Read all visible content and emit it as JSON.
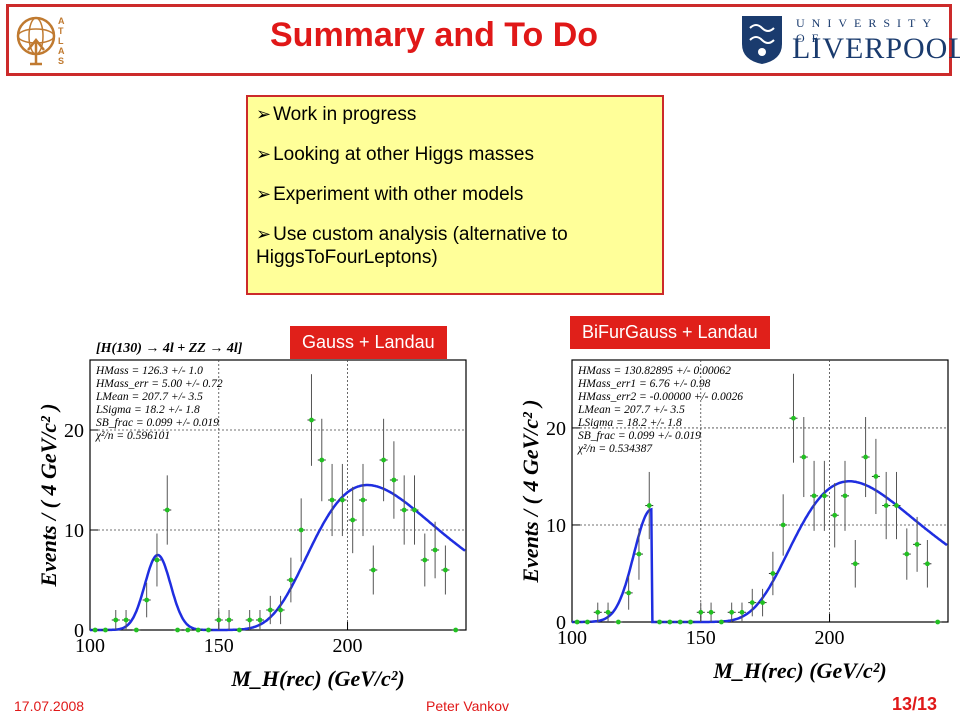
{
  "slide": {
    "title": "Summary and To Do",
    "footer_date": "17.07.2008",
    "footer_author": "Peter Vankov",
    "page": "13/13",
    "colors": {
      "accent": "#e01818",
      "box_bg": "#ffff99",
      "fit": "#1f2ee0",
      "points": "#22c022"
    }
  },
  "logos": {
    "atlas": {
      "text": "ATLAS"
    },
    "liverpool": {
      "top": "UNIVERSITY OF",
      "main": "LIVERPOOL"
    }
  },
  "todo": {
    "items": [
      "Work in progress",
      "Looking at other Higgs masses",
      "Experiment with other models",
      "Use custom analysis (alternative to HiggsToFourLeptons)"
    ]
  },
  "labels": {
    "left": "Gauss + Landau",
    "right": "BiFurGauss + Landau"
  },
  "chart_data": [
    {
      "type": "scatter",
      "title": "[H(130) → 4l + ZZ → 4l]",
      "xlabel": "M_H(rec) (GeV/c²)",
      "ylabel": "Events / ( 4 GeV/c² )",
      "xlim": [
        100,
        246
      ],
      "ylim": [
        0,
        27
      ],
      "xticks": [
        100,
        150,
        200
      ],
      "yticks": [
        0,
        10,
        20
      ],
      "stats": [
        "HMass = 126.3 +/- 1.0",
        "HMass_err = 5.00 +/- 0.72",
        "LMean = 207.7 +/- 3.5",
        "LSigma = 18.2 +/- 1.8",
        "SB_frac = 0.099 +/- 0.019",
        "χ²/n = 0.596101"
      ],
      "points": {
        "x": [
          102,
          106,
          110,
          114,
          118,
          122,
          126,
          130,
          134,
          138,
          142,
          146,
          150,
          154,
          158,
          162,
          166,
          170,
          174,
          178,
          182,
          186,
          190,
          194,
          198,
          202,
          206,
          210,
          214,
          218,
          222,
          226,
          230,
          234,
          238,
          242
        ],
        "y": [
          0,
          0,
          1,
          1,
          0,
          3,
          7,
          12,
          0,
          0,
          0,
          0,
          1,
          1,
          0,
          1,
          1,
          2,
          2,
          5,
          10,
          21,
          17,
          13,
          13,
          11,
          13,
          6,
          17,
          15,
          12,
          12,
          7,
          8,
          6,
          0
        ]
      },
      "curve": {
        "model": "gauss+landau",
        "peak_mass": 126.3,
        "peak_sigma": 5.0,
        "landau_mean": 207.7,
        "landau_sigma": 18.2
      }
    },
    {
      "type": "scatter",
      "title": "",
      "xlabel": "M_H(rec) (GeV/c²)",
      "ylabel": "Events / ( 4 GeV/c² )",
      "xlim": [
        100,
        246
      ],
      "ylim": [
        0,
        27
      ],
      "xticks": [
        100,
        150,
        200
      ],
      "yticks": [
        0,
        10,
        20
      ],
      "stats": [
        "HMass = 130.82895 +/- 0.00062",
        "HMass_err1 = 6.76 +/- 0.98",
        "HMass_err2 = -0.00000 +/- 0.0026",
        "LMean = 207.7 +/- 3.5",
        "LSigma = 18.2 +/- 1.8",
        "SB_frac = 0.099 +/- 0.019",
        "χ²/n = 0.534387"
      ],
      "points": {
        "x": [
          102,
          106,
          110,
          114,
          118,
          122,
          126,
          130,
          134,
          138,
          142,
          146,
          150,
          154,
          158,
          162,
          166,
          170,
          174,
          178,
          182,
          186,
          190,
          194,
          198,
          202,
          206,
          210,
          214,
          218,
          222,
          226,
          230,
          234,
          238,
          242
        ],
        "y": [
          0,
          0,
          1,
          1,
          0,
          3,
          7,
          12,
          0,
          0,
          0,
          0,
          1,
          1,
          0,
          1,
          1,
          2,
          2,
          5,
          10,
          21,
          17,
          13,
          13,
          11,
          13,
          6,
          17,
          15,
          12,
          12,
          7,
          8,
          6,
          0
        ]
      },
      "curve": {
        "model": "bifurgauss+landau",
        "peak_mass": 130.83,
        "sigma_left": 6.76,
        "sigma_right": 0.0,
        "landau_mean": 207.7,
        "landau_sigma": 18.2
      }
    }
  ]
}
